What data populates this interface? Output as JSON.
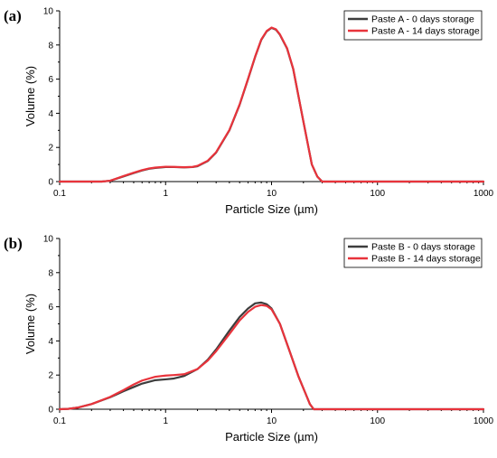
{
  "chart_data": [
    {
      "type": "line",
      "panel_label": "(a)",
      "xlabel": "Particle Size (µm)",
      "ylabel": "Volume (%)",
      "xscale": "log",
      "xlim": [
        0.1,
        1000
      ],
      "ylim": [
        0,
        10
      ],
      "x_ticks": [
        "0.1",
        "1",
        "10",
        "100",
        "1000"
      ],
      "y_ticks": [
        "0",
        "2",
        "4",
        "6",
        "8",
        "10"
      ],
      "legend_position": "top-right",
      "grid": false,
      "series": [
        {
          "name": "Paste A - 0 days storage",
          "color": "#3d3d3d",
          "x": [
            0.1,
            0.25,
            0.3,
            0.4,
            0.5,
            0.6,
            0.7,
            0.8,
            1.0,
            1.2,
            1.5,
            1.8,
            2.0,
            2.5,
            3.0,
            4.0,
            5.0,
            6.0,
            7.0,
            8.0,
            9.0,
            10.0,
            11.0,
            12.0,
            14.0,
            16.0,
            20.0,
            24.0,
            27.0,
            30.0,
            40.0,
            100,
            1000
          ],
          "y": [
            0,
            0,
            0.05,
            0.3,
            0.5,
            0.65,
            0.75,
            0.8,
            0.85,
            0.85,
            0.83,
            0.85,
            0.9,
            1.2,
            1.7,
            3.0,
            4.5,
            6.0,
            7.3,
            8.3,
            8.8,
            9.0,
            8.9,
            8.6,
            7.8,
            6.6,
            3.5,
            1.0,
            0.3,
            0,
            0,
            0,
            0
          ]
        },
        {
          "name": "Paste A - 14 days storage",
          "color": "#e8333b",
          "x": [
            0.1,
            0.25,
            0.3,
            0.4,
            0.5,
            0.6,
            0.7,
            0.8,
            1.0,
            1.2,
            1.5,
            1.8,
            2.0,
            2.5,
            3.0,
            4.0,
            5.0,
            6.0,
            7.0,
            8.0,
            9.0,
            10.0,
            11.0,
            12.0,
            14.0,
            16.0,
            20.0,
            24.0,
            27.0,
            30.0,
            40.0,
            100,
            1000
          ],
          "y": [
            0,
            0,
            0.05,
            0.32,
            0.52,
            0.67,
            0.77,
            0.82,
            0.87,
            0.86,
            0.84,
            0.86,
            0.92,
            1.22,
            1.72,
            3.02,
            4.52,
            6.02,
            7.32,
            8.32,
            8.82,
            9.02,
            8.92,
            8.62,
            7.82,
            6.62,
            3.5,
            1.0,
            0.3,
            0,
            0,
            0,
            0
          ]
        }
      ]
    },
    {
      "type": "line",
      "panel_label": "(b)",
      "xlabel": "Particle Size (µm)",
      "ylabel": "Volume (%)",
      "xscale": "log",
      "xlim": [
        0.1,
        1000
      ],
      "ylim": [
        0,
        10
      ],
      "x_ticks": [
        "0.1",
        "1",
        "10",
        "100",
        "1000"
      ],
      "y_ticks": [
        "0",
        "2",
        "4",
        "6",
        "8",
        "10"
      ],
      "legend_position": "top-right",
      "grid": false,
      "series": [
        {
          "name": "Paste B - 0 days storage",
          "color": "#3d3d3d",
          "x": [
            0.1,
            0.12,
            0.15,
            0.2,
            0.3,
            0.4,
            0.5,
            0.6,
            0.8,
            1.0,
            1.2,
            1.5,
            2.0,
            2.5,
            3.0,
            4.0,
            5.0,
            6.0,
            7.0,
            8.0,
            9.0,
            10.0,
            12.0,
            15.0,
            18.0,
            21.0,
            23.0,
            25.0,
            100,
            1000
          ],
          "y": [
            0,
            0.02,
            0.1,
            0.3,
            0.7,
            1.05,
            1.3,
            1.5,
            1.7,
            1.75,
            1.8,
            1.95,
            2.35,
            2.9,
            3.5,
            4.6,
            5.4,
            5.9,
            6.2,
            6.25,
            6.15,
            5.9,
            5.0,
            3.3,
            1.9,
            0.9,
            0.3,
            0,
            0,
            0
          ]
        },
        {
          "name": "Paste B - 14 days storage",
          "color": "#e8333b",
          "x": [
            0.1,
            0.12,
            0.15,
            0.2,
            0.3,
            0.4,
            0.5,
            0.6,
            0.8,
            1.0,
            1.2,
            1.5,
            2.0,
            2.5,
            3.0,
            4.0,
            5.0,
            6.0,
            7.0,
            8.0,
            9.0,
            10.0,
            12.0,
            15.0,
            18.0,
            21.0,
            23.0,
            25.0,
            100,
            1000
          ],
          "y": [
            0,
            0.02,
            0.1,
            0.3,
            0.72,
            1.12,
            1.45,
            1.68,
            1.9,
            1.97,
            2.0,
            2.05,
            2.35,
            2.85,
            3.4,
            4.4,
            5.2,
            5.7,
            6.0,
            6.1,
            6.05,
            5.85,
            5.0,
            3.3,
            1.9,
            0.9,
            0.3,
            0,
            0,
            0
          ]
        }
      ]
    }
  ]
}
